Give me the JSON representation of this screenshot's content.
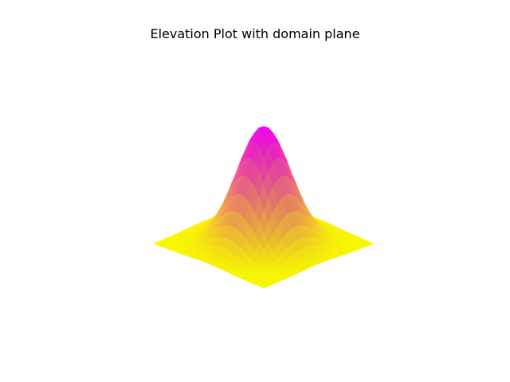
{
  "chart_data": {
    "type": "surface",
    "title": "Elevation Plot with domain plane",
    "xlabel": "",
    "ylabel": "",
    "zlabel": "",
    "axes_visible": false,
    "grid": false,
    "function": "z = exp(-(x^2 + y^2))",
    "x_range": [
      -2,
      2
    ],
    "y_range": [
      -2,
      2
    ],
    "z_range": [
      0,
      1
    ],
    "grid_points": 25,
    "colormap": "spring",
    "colormap_colors": [
      "#ff00ff",
      "#ffff00"
    ],
    "view": "3d-perspective"
  }
}
